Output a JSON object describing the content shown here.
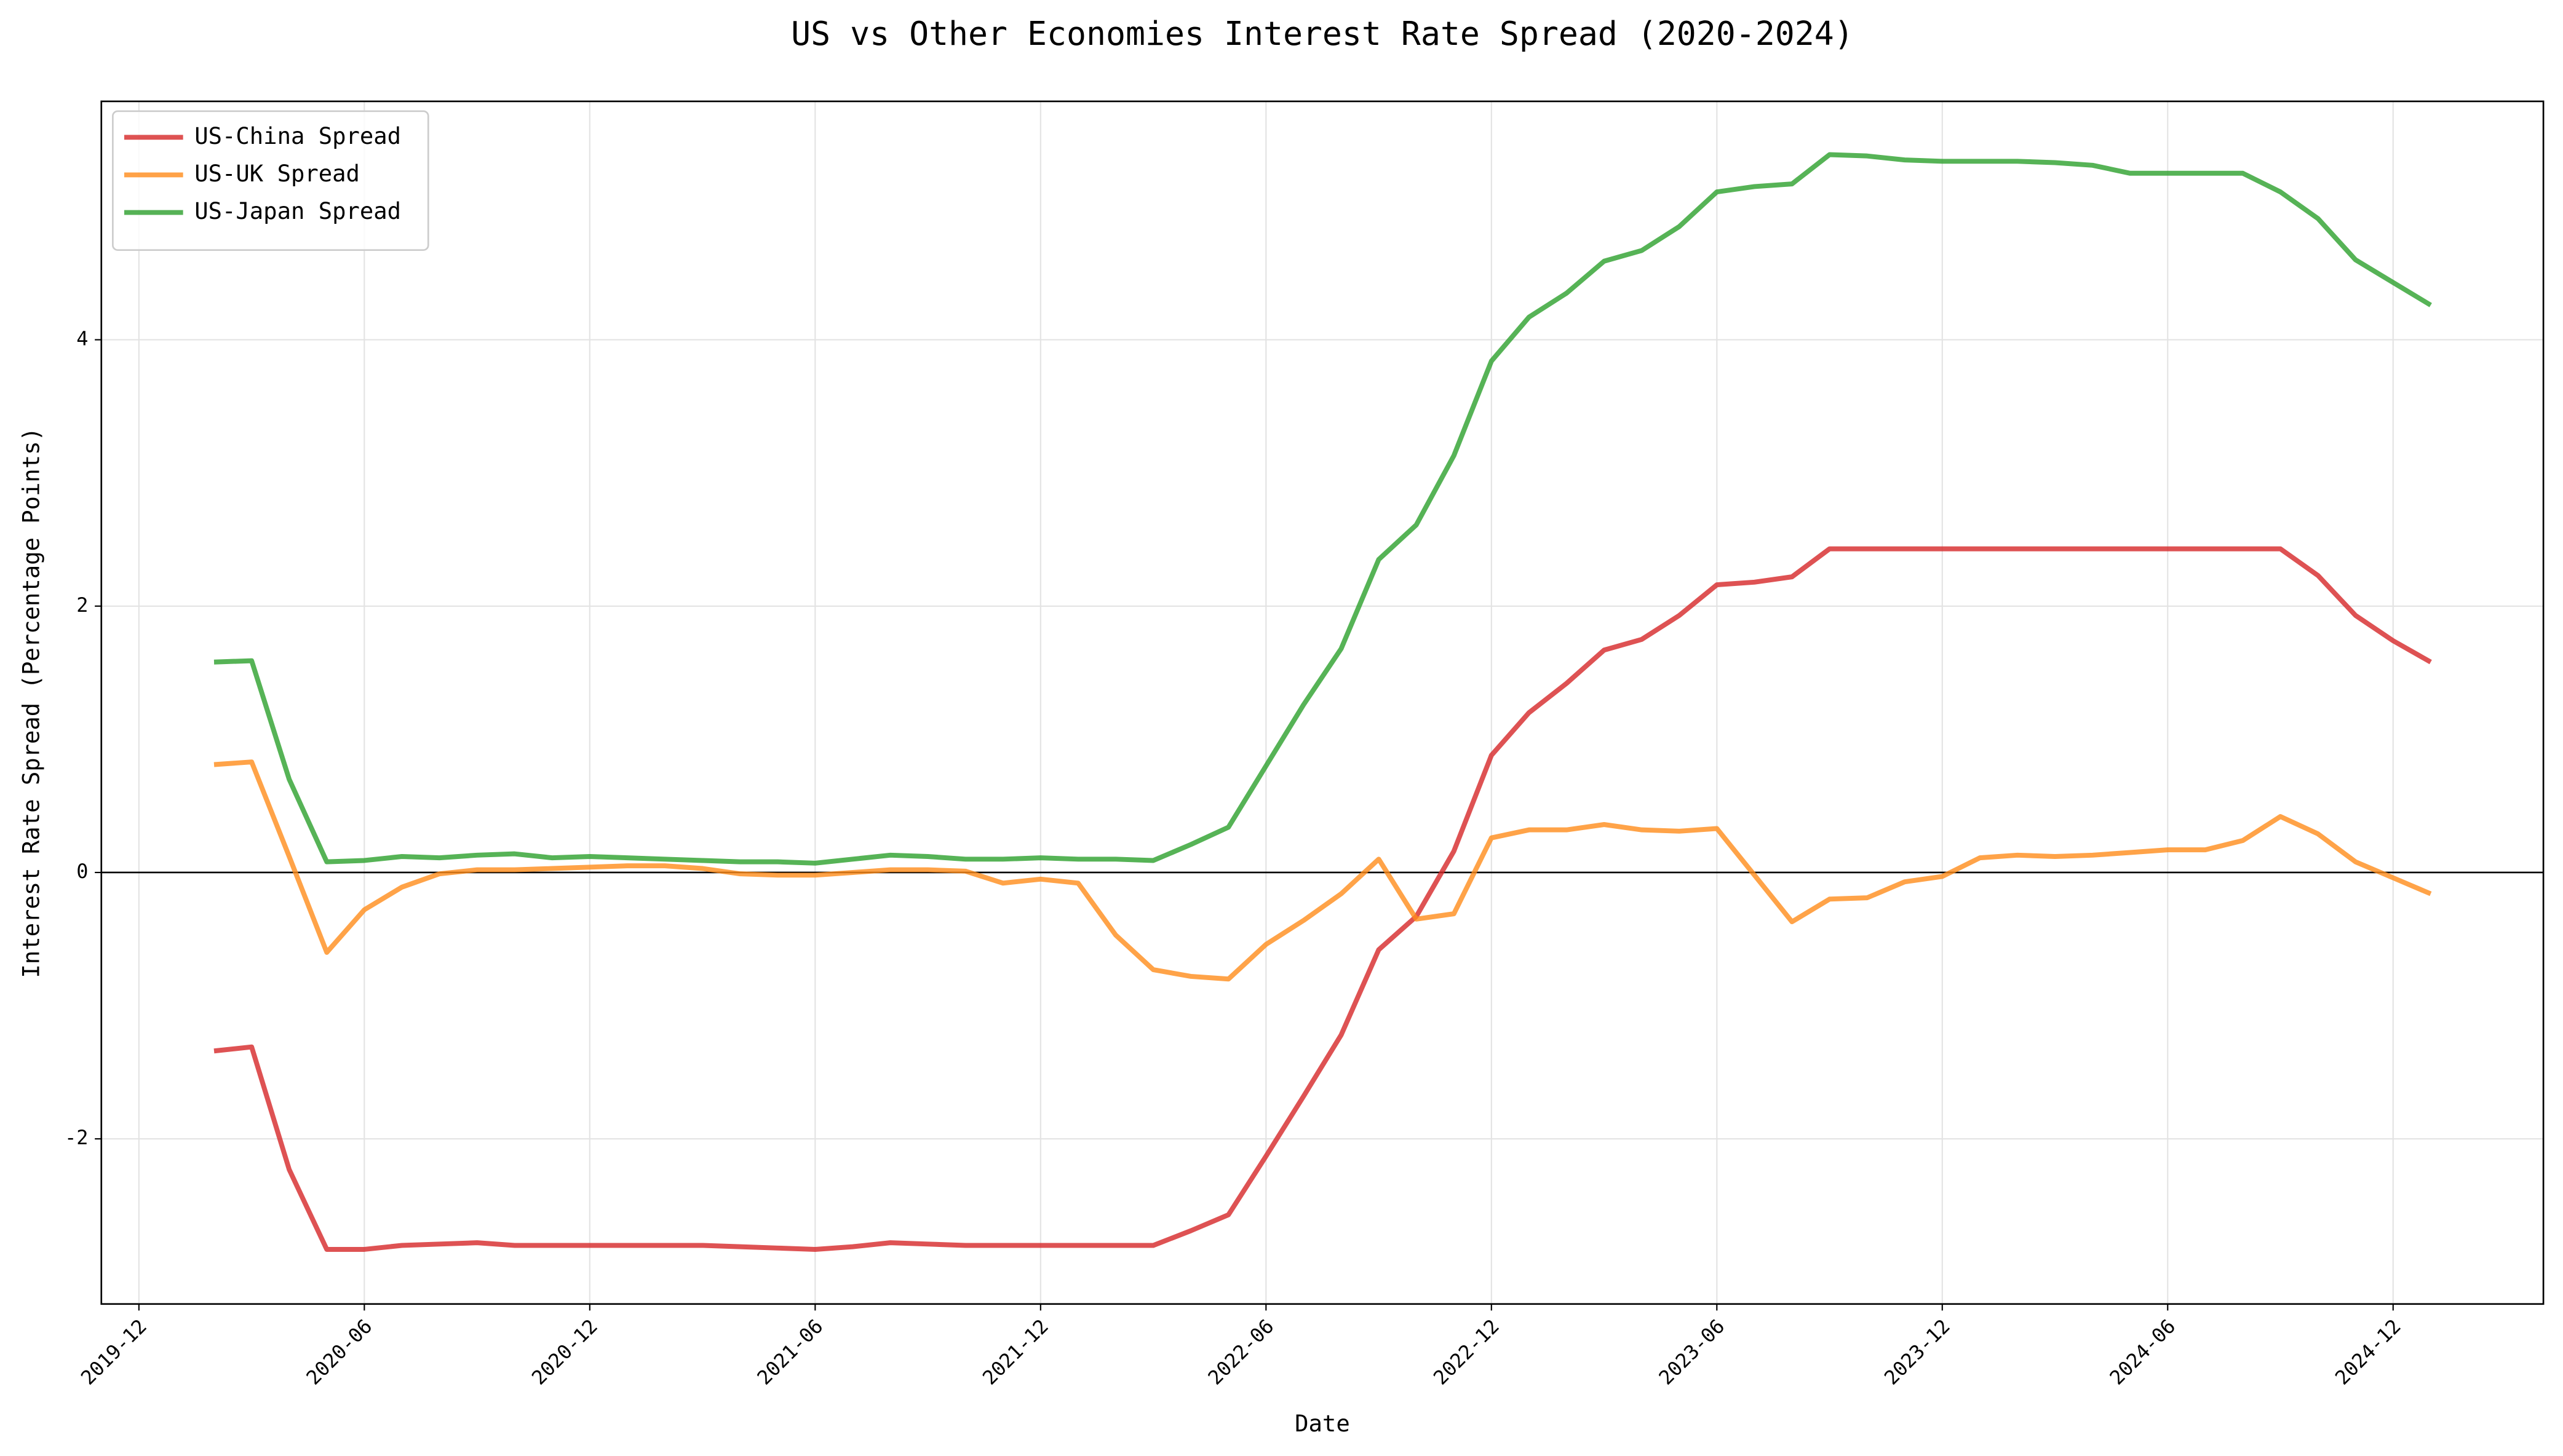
{
  "chart_data": {
    "type": "line",
    "title": "US vs Other Economies Interest Rate Spread (2020-2024)",
    "x_label": "Date",
    "y_label": "Interest Rate Spread (Percentage Points)",
    "x": [
      "2020-02",
      "2020-03",
      "2020-04",
      "2020-05",
      "2020-06",
      "2020-07",
      "2020-08",
      "2020-09",
      "2020-10",
      "2020-11",
      "2020-12",
      "2021-01",
      "2021-02",
      "2021-03",
      "2021-04",
      "2021-05",
      "2021-06",
      "2021-07",
      "2021-08",
      "2021-09",
      "2021-10",
      "2021-11",
      "2021-12",
      "2022-01",
      "2022-02",
      "2022-03",
      "2022-04",
      "2022-05",
      "2022-06",
      "2022-07",
      "2022-08",
      "2022-09",
      "2022-10",
      "2022-11",
      "2022-12",
      "2023-01",
      "2023-02",
      "2023-03",
      "2023-04",
      "2023-05",
      "2023-06",
      "2023-07",
      "2023-08",
      "2023-09",
      "2023-10",
      "2023-11",
      "2023-12",
      "2024-01",
      "2024-02",
      "2024-03",
      "2024-04",
      "2024-05",
      "2024-06",
      "2024-07",
      "2024-08",
      "2024-09",
      "2024-10",
      "2024-11",
      "2024-12",
      "2025-01"
    ],
    "series": [
      {
        "name": "US-China Spread",
        "color": "#d62728",
        "values": [
          -1.34,
          -1.31,
          -2.23,
          -2.83,
          -2.83,
          -2.8,
          -2.79,
          -2.78,
          -2.8,
          -2.8,
          -2.8,
          -2.8,
          -2.8,
          -2.8,
          -2.81,
          -2.82,
          -2.83,
          -2.81,
          -2.78,
          -2.79,
          -2.8,
          -2.8,
          -2.8,
          -2.8,
          -2.8,
          -2.8,
          -2.69,
          -2.57,
          -2.13,
          -1.68,
          -1.22,
          -0.58,
          -0.33,
          0.16,
          0.88,
          1.2,
          1.42,
          1.67,
          1.75,
          1.93,
          2.16,
          2.18,
          2.22,
          2.43,
          2.43,
          2.43,
          2.43,
          2.43,
          2.43,
          2.43,
          2.43,
          2.43,
          2.43,
          2.43,
          2.43,
          2.43,
          2.23,
          1.93,
          1.74,
          1.58
        ]
      },
      {
        "name": "US-UK Spread",
        "color": "#ff8c1a",
        "values": [
          0.81,
          0.83,
          0.12,
          -0.6,
          -0.28,
          -0.11,
          -0.01,
          0.02,
          0.02,
          0.03,
          0.04,
          0.05,
          0.05,
          0.03,
          -0.01,
          -0.02,
          -0.02,
          0.0,
          0.02,
          0.02,
          0.01,
          -0.08,
          -0.05,
          -0.08,
          -0.47,
          -0.73,
          -0.78,
          -0.8,
          -0.54,
          -0.36,
          -0.16,
          0.1,
          -0.35,
          -0.31,
          0.26,
          0.32,
          0.32,
          0.36,
          0.32,
          0.31,
          0.33,
          -0.02,
          -0.37,
          -0.2,
          -0.19,
          -0.07,
          -0.03,
          0.11,
          0.13,
          0.12,
          0.13,
          0.15,
          0.17,
          0.17,
          0.24,
          0.42,
          0.29,
          0.08,
          -0.04,
          -0.16
        ]
      },
      {
        "name": "US-Japan Spread",
        "color": "#2ca02c",
        "values": [
          1.58,
          1.59,
          0.7,
          0.08,
          0.09,
          0.12,
          0.11,
          0.13,
          0.14,
          0.11,
          0.12,
          0.11,
          0.1,
          0.09,
          0.08,
          0.08,
          0.07,
          0.1,
          0.13,
          0.12,
          0.1,
          0.1,
          0.11,
          0.1,
          0.1,
          0.09,
          0.21,
          0.34,
          0.8,
          1.26,
          1.68,
          2.35,
          2.61,
          3.13,
          3.84,
          4.17,
          4.35,
          4.59,
          4.67,
          4.85,
          5.11,
          5.15,
          5.17,
          5.39,
          5.38,
          5.35,
          5.34,
          5.34,
          5.34,
          5.33,
          5.31,
          5.25,
          5.25,
          5.25,
          5.25,
          5.11,
          4.91,
          4.6,
          4.43,
          4.26
        ]
      }
    ],
    "xlim": [
      "2019-11",
      "2025-04"
    ],
    "xticks": [
      "2019-12",
      "2020-06",
      "2020-12",
      "2021-06",
      "2021-12",
      "2022-06",
      "2022-12",
      "2023-06",
      "2023-12",
      "2024-06",
      "2024-12"
    ],
    "ylim": [
      -3.24,
      5.79
    ],
    "yticks": [
      -2,
      0,
      2,
      4
    ],
    "grid": true,
    "zero_line": true,
    "legend": "upper left"
  }
}
